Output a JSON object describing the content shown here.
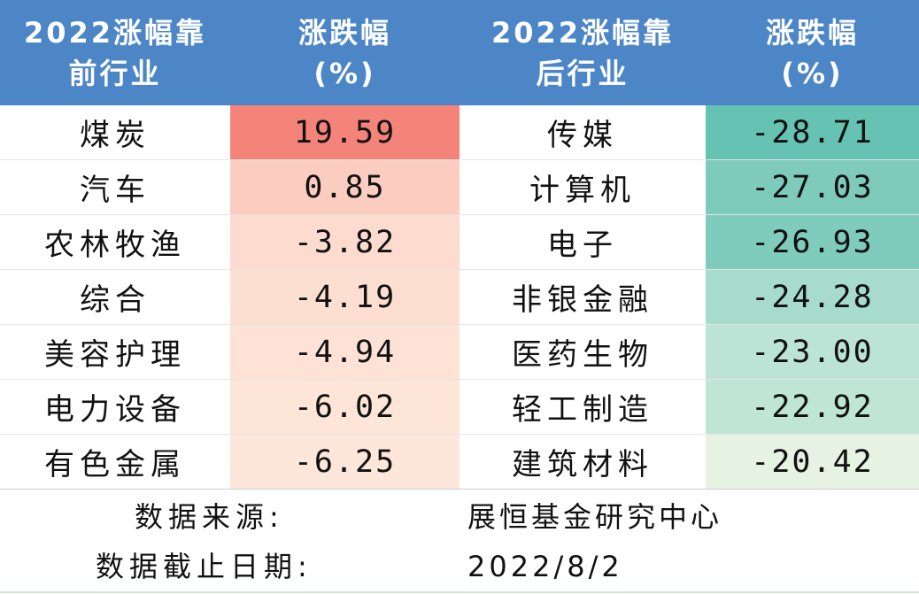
{
  "header": {
    "col1_line1": "2022涨幅靠",
    "col1_line2": "前行业",
    "col2_line1": "涨跌幅",
    "col2_line2": "(%)",
    "col3_line1": "2022涨幅靠",
    "col3_line2": "后行业",
    "col4_line1": "涨跌幅",
    "col4_line2": "(%)"
  },
  "rows": [
    {
      "top_industry": "煤炭",
      "top_change": "19.59",
      "top_color": "#f4837a",
      "bottom_industry": "传媒",
      "bottom_change": "-28.71",
      "bottom_color": "#66c2b2"
    },
    {
      "top_industry": "汽车",
      "top_change": "0.85",
      "top_color": "#fbccc0",
      "bottom_industry": "计算机",
      "bottom_change": "-27.03",
      "bottom_color": "#7ecbbb"
    },
    {
      "top_industry": "农林牧渔",
      "top_change": "-3.82",
      "top_color": "#fddccf",
      "bottom_industry": "电子",
      "bottom_change": "-26.93",
      "bottom_color": "#80ccbc"
    },
    {
      "top_industry": "综合",
      "top_change": "-4.19",
      "top_color": "#fddfd2",
      "bottom_industry": "非银金融",
      "bottom_change": "-24.28",
      "bottom_color": "#a7dccc"
    },
    {
      "top_industry": "美容护理",
      "top_change": "-4.94",
      "top_color": "#fde2d5",
      "bottom_industry": "医药生物",
      "bottom_change": "-23.00",
      "bottom_color": "#bce4d6"
    },
    {
      "top_industry": "电力设备",
      "top_change": "-6.02",
      "top_color": "#fde6d8",
      "bottom_industry": "轻工制造",
      "bottom_change": "-22.92",
      "bottom_color": "#bfe5d7"
    },
    {
      "top_industry": "有色金属",
      "top_change": "-6.25",
      "top_color": "#fde7da",
      "bottom_industry": "建筑材料",
      "bottom_change": "-20.42",
      "bottom_color": "#e6f2e2"
    }
  ],
  "footer": {
    "source_label": "数据来源:",
    "source_value": "展恒基金研究中心",
    "date_label": "数据截止日期:",
    "date_value": "2022/8/2"
  }
}
